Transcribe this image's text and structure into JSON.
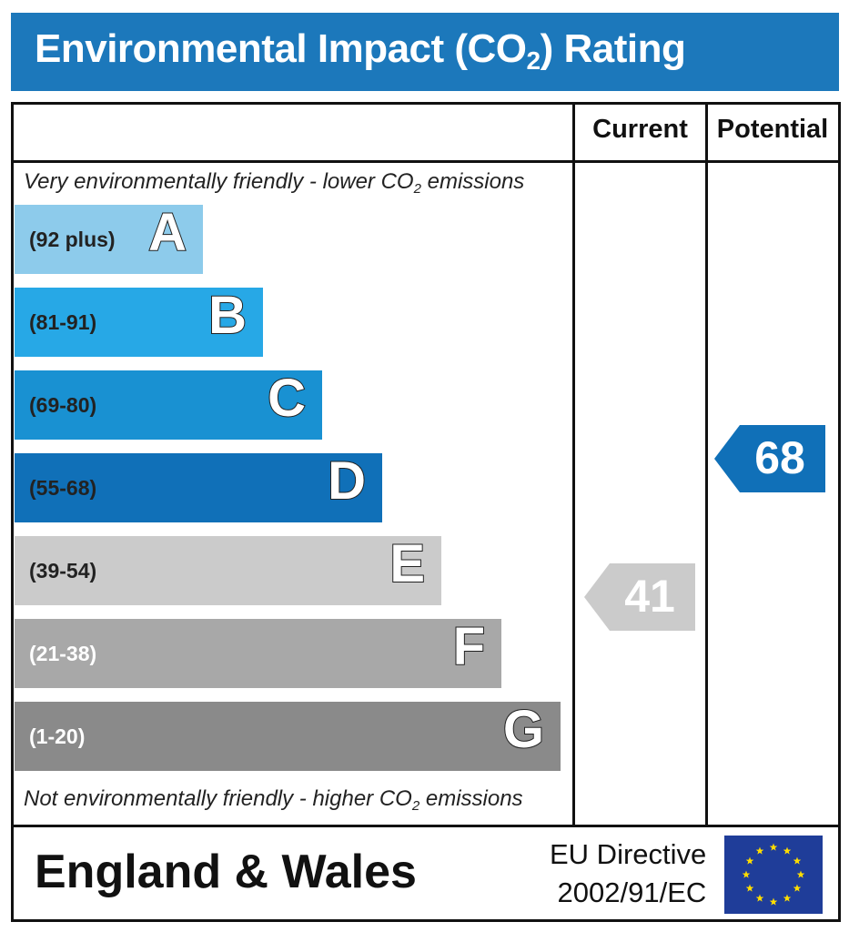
{
  "title": {
    "prefix": "Environmental Impact (CO",
    "subscript": "2",
    "suffix": ") Rating"
  },
  "columns": {
    "current": "Current",
    "potential": "Potential"
  },
  "top_note": {
    "prefix": "Very environmentally friendly - lower CO",
    "subscript": "2",
    "suffix": " emissions"
  },
  "bottom_note": {
    "prefix": "Not environmentally friendly - higher CO",
    "subscript": "2",
    "suffix": " emissions"
  },
  "chart_data": {
    "type": "bar",
    "bands": [
      {
        "letter": "A",
        "range": "(92 plus)",
        "min": 92,
        "max": null,
        "color": "#8dcbeb",
        "range_text_color": "#222222"
      },
      {
        "letter": "B",
        "range": "(81-91)",
        "min": 81,
        "max": 91,
        "color": "#27a8e6",
        "range_text_color": "#222222"
      },
      {
        "letter": "C",
        "range": "(69-80)",
        "min": 69,
        "max": 80,
        "color": "#1991d2",
        "range_text_color": "#222222"
      },
      {
        "letter": "D",
        "range": "(55-68)",
        "min": 55,
        "max": 68,
        "color": "#1070b8",
        "range_text_color": "#222222"
      },
      {
        "letter": "E",
        "range": "(39-54)",
        "min": 39,
        "max": 54,
        "color": "#cbcbcb",
        "range_text_color": "#222222"
      },
      {
        "letter": "F",
        "range": "(21-38)",
        "min": 21,
        "max": 38,
        "color": "#a8a8a8",
        "range_text_color": "#ffffff"
      },
      {
        "letter": "G",
        "range": "(1-20)",
        "min": 1,
        "max": 20,
        "color": "#8a8a8a",
        "range_text_color": "#ffffff"
      }
    ],
    "current": {
      "value": 41,
      "band": "E",
      "color": "#cbcbcb"
    },
    "potential": {
      "value": 68,
      "band": "D",
      "color": "#1070b8"
    }
  },
  "footer": {
    "region": "England & Wales",
    "directive_line1": "EU Directive",
    "directive_line2": "2002/91/EC"
  }
}
